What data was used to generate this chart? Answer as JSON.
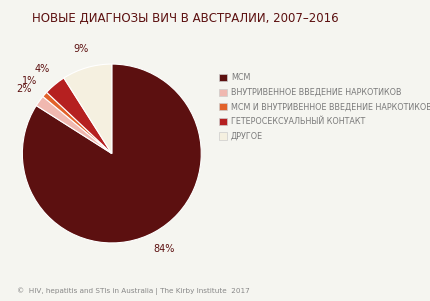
{
  "title": "НОВЫЕ ДИАГНОЗЫ ВИЧ В АВСТРАЛИИ, 2007–2016",
  "slices": [
    84,
    2,
    1,
    4,
    9
  ],
  "labels": [
    "МСМ",
    "ВНУТРИВЕННОЕ ВВЕДЕНИЕ НАРКОТИКОВ",
    "МСМ И ВНУТРИВЕННОЕ ВВЕДЕНИЕ НАРКОТИКОВ",
    "ГЕТЕРОСЕКСУАЛЬНЫЙ КОНТАКТ",
    "ДРУГОЕ"
  ],
  "colors": [
    "#5c1010",
    "#f0b8b0",
    "#e2622a",
    "#b52020",
    "#f5f0e0"
  ],
  "pct_labels": [
    "84%",
    "2%",
    "1%",
    "4%",
    "9%"
  ],
  "startangle": 90,
  "footer": "©  HIV, hepatitis and STIs in Australia | The Kirby Institute  2017",
  "background_color": "#f5f5f0",
  "title_fontsize": 8.5,
  "legend_fontsize": 5.8,
  "pct_fontsize": 7.0
}
